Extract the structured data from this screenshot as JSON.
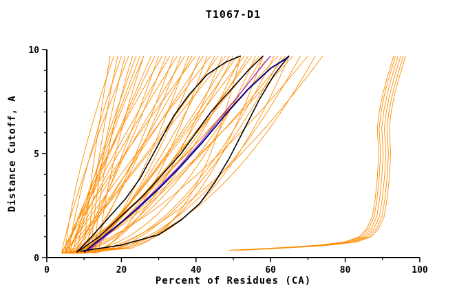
{
  "chart_data": {
    "type": "line",
    "title": "T1067-D1",
    "xlabel": "Percent of Residues (CA)",
    "ylabel": "Distance Cutoff, A",
    "xlim": [
      0,
      100
    ],
    "ylim": [
      0,
      10
    ],
    "x_major_ticks": [
      0,
      20,
      40,
      60,
      80,
      100
    ],
    "x_minor_step": 10,
    "y_major_ticks": [
      0,
      5,
      10
    ],
    "y_minor_step": 1,
    "grid": false,
    "legend": "none",
    "colors": {
      "ensemble": "#ff8c00",
      "highlight_black": "#000000",
      "highlight_navy": "#000080",
      "highlight_violet": "#9932cc",
      "axis": "#000000"
    },
    "y_start": 0.2,
    "y_end": 9.7,
    "orange_param_curves": [
      [
        5,
        18,
        1.4
      ],
      [
        6,
        20,
        1.3
      ],
      [
        4,
        22,
        1.2
      ],
      [
        7,
        24,
        1.15
      ],
      [
        5,
        25,
        1.0
      ],
      [
        8,
        26,
        1.25
      ],
      [
        4,
        28,
        0.95
      ],
      [
        6,
        29,
        1.1
      ],
      [
        9,
        30,
        0.9
      ],
      [
        5,
        31,
        1.2
      ],
      [
        7,
        32,
        0.85
      ],
      [
        4,
        33,
        1.05
      ],
      [
        10,
        34,
        0.8
      ],
      [
        6,
        35,
        1.15
      ],
      [
        8,
        36,
        0.75
      ],
      [
        5,
        37,
        1.0
      ],
      [
        11,
        38,
        0.7
      ],
      [
        7,
        39,
        0.9
      ],
      [
        4,
        40,
        1.1
      ],
      [
        9,
        41,
        0.65
      ],
      [
        6,
        42,
        0.95
      ],
      [
        12,
        43,
        0.6
      ],
      [
        5,
        44,
        1.05
      ],
      [
        8,
        45,
        0.7
      ],
      [
        4,
        46,
        0.9
      ],
      [
        10,
        47,
        0.55
      ],
      [
        6,
        48,
        1.0
      ],
      [
        7,
        49,
        0.75
      ],
      [
        5,
        50,
        0.6
      ],
      [
        9,
        51,
        0.85
      ],
      [
        4,
        52,
        0.5
      ],
      [
        11,
        53,
        0.95
      ],
      [
        6,
        54,
        0.65
      ],
      [
        8,
        55,
        0.8
      ],
      [
        5,
        56,
        0.45
      ],
      [
        10,
        57,
        0.9
      ],
      [
        7,
        58,
        0.6
      ],
      [
        4,
        60,
        0.75
      ],
      [
        9,
        61,
        0.5
      ],
      [
        6,
        62,
        0.85
      ],
      [
        12,
        63,
        0.55
      ],
      [
        5,
        64,
        0.7
      ],
      [
        8,
        65,
        0.4
      ],
      [
        7,
        66,
        0.8
      ],
      [
        10,
        68,
        0.5
      ],
      [
        4,
        70,
        0.65
      ],
      [
        6,
        72,
        0.45
      ],
      [
        9,
        74,
        0.6
      ],
      [
        12,
        21,
        1.5
      ],
      [
        13,
        23,
        1.6
      ],
      [
        14,
        26,
        1.45
      ],
      [
        11,
        19,
        1.35
      ],
      [
        10,
        17,
        1.3
      ],
      [
        6,
        58,
        0.35
      ],
      [
        8,
        52,
        0.3
      ]
    ],
    "cluster_base": [
      [
        50,
        0.35
      ],
      [
        58,
        0.42
      ],
      [
        66,
        0.5
      ],
      [
        74,
        0.6
      ],
      [
        81,
        0.75
      ],
      [
        85,
        1.0
      ],
      [
        87,
        1.4
      ],
      [
        88.5,
        2.0
      ],
      [
        89.2,
        2.8
      ],
      [
        89.8,
        3.8
      ],
      [
        90.2,
        5.0
      ],
      [
        89.8,
        6.2
      ],
      [
        90.3,
        7.0
      ],
      [
        91.2,
        7.8
      ],
      [
        92.2,
        8.5
      ],
      [
        93.2,
        9.1
      ],
      [
        94.2,
        9.7
      ]
    ],
    "cluster_offsets": [
      0,
      0.7,
      -0.7,
      1.4,
      -1.2,
      2.0
    ],
    "black_curves": [
      [
        [
          8,
          0.25
        ],
        [
          12,
          1
        ],
        [
          16,
          1.8
        ],
        [
          21,
          2.8
        ],
        [
          25,
          3.8
        ],
        [
          28,
          4.8
        ],
        [
          31,
          5.8
        ],
        [
          34,
          6.8
        ],
        [
          38,
          7.8
        ],
        [
          43,
          8.8
        ],
        [
          48,
          9.4
        ],
        [
          52,
          9.7
        ]
      ],
      [
        [
          8,
          0.25
        ],
        [
          14,
          1
        ],
        [
          20,
          2
        ],
        [
          26,
          3
        ],
        [
          31,
          4
        ],
        [
          36,
          5
        ],
        [
          40,
          6
        ],
        [
          44,
          7
        ],
        [
          49,
          8
        ],
        [
          54,
          9
        ],
        [
          58,
          9.7
        ]
      ],
      [
        [
          9,
          0.3
        ],
        [
          20,
          0.6
        ],
        [
          30,
          1.1
        ],
        [
          36,
          1.8
        ],
        [
          41,
          2.6
        ],
        [
          45,
          3.6
        ],
        [
          49,
          4.8
        ],
        [
          53,
          6.2
        ],
        [
          57,
          7.6
        ],
        [
          61,
          8.8
        ],
        [
          64,
          9.5
        ],
        [
          65,
          9.7
        ]
      ]
    ],
    "navy_curve": [
      [
        10,
        0.25
      ],
      [
        13,
        0.7
      ],
      [
        18,
        1.4
      ],
      [
        24,
        2.3
      ],
      [
        30,
        3.3
      ],
      [
        36,
        4.4
      ],
      [
        42,
        5.6
      ],
      [
        48,
        6.9
      ],
      [
        54,
        8.1
      ],
      [
        60,
        9.1
      ],
      [
        64,
        9.55
      ],
      [
        65,
        9.7
      ]
    ],
    "violet_curve": [
      [
        11,
        0.3
      ],
      [
        17,
        1.2
      ],
      [
        23,
        2.2
      ],
      [
        29,
        3.2
      ],
      [
        35,
        4.3
      ],
      [
        41,
        5.5
      ],
      [
        46,
        6.6
      ],
      [
        51,
        7.7
      ],
      [
        55,
        8.6
      ],
      [
        58,
        9.3
      ],
      [
        60,
        9.7
      ]
    ]
  }
}
